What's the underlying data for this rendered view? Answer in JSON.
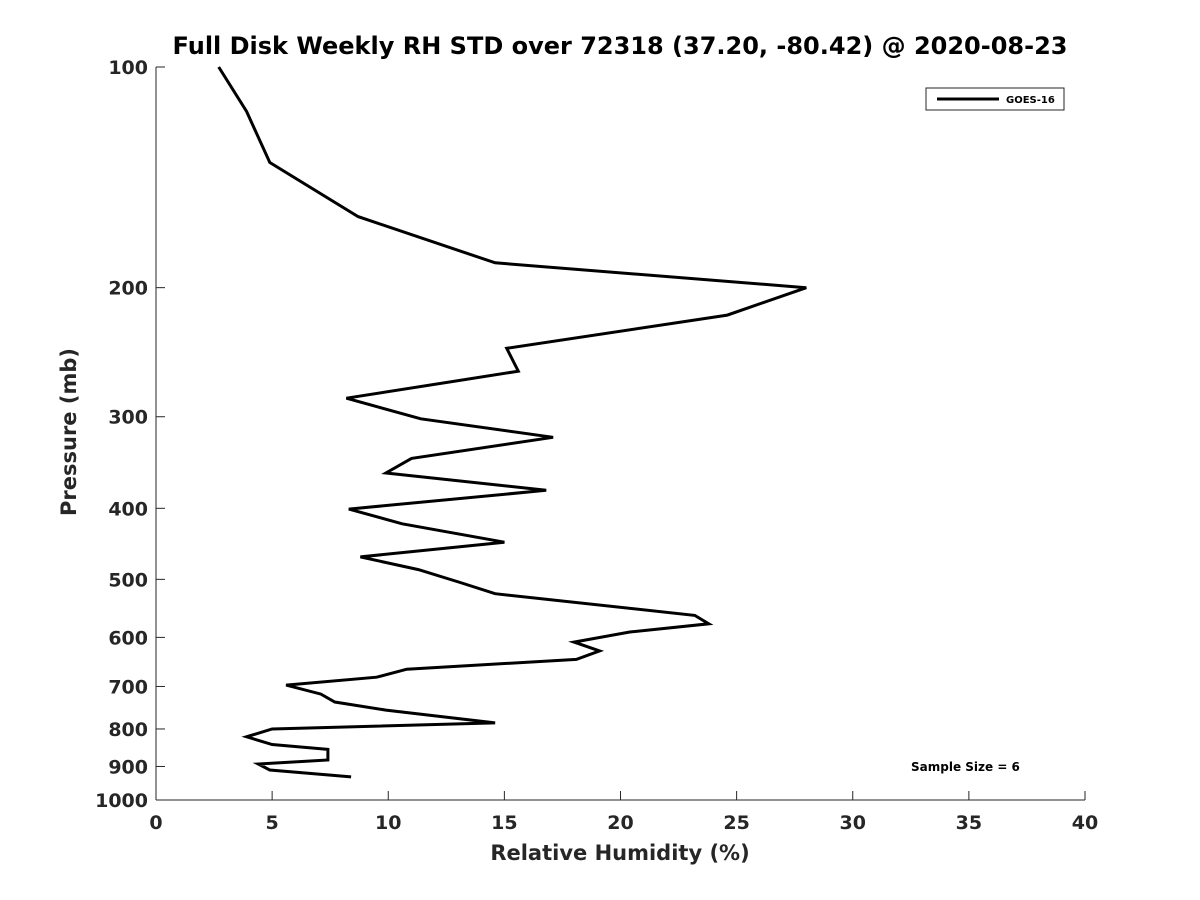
{
  "chart_data": {
    "type": "line",
    "title": "Full Disk Weekly RH STD over 72318 (37.20, -80.42) @ 2020-08-23",
    "xlabel": "Relative Humidity (%)",
    "ylabel": "Pressure (mb)",
    "xlim": [
      0,
      40
    ],
    "ylim": [
      100,
      1000
    ],
    "yscale": "log",
    "yreversed": true,
    "xticks": [
      0,
      5,
      10,
      15,
      20,
      25,
      30,
      35,
      40
    ],
    "yticks": [
      100,
      200,
      300,
      400,
      500,
      600,
      700,
      800,
      900,
      1000
    ],
    "grid": false,
    "legend_position": "top-right",
    "annotation": "Sample Size = 6",
    "series": [
      {
        "name": "GOES-16",
        "color": "#000000",
        "points": [
          [
            2.7,
            100
          ],
          [
            3.9,
            115
          ],
          [
            4.9,
            135
          ],
          [
            8.7,
            160
          ],
          [
            14.6,
            185
          ],
          [
            28.0,
            200
          ],
          [
            24.6,
            218
          ],
          [
            15.1,
            242
          ],
          [
            15.6,
            260
          ],
          [
            8.2,
            283
          ],
          [
            11.4,
            302
          ],
          [
            17.1,
            320
          ],
          [
            11.0,
            342
          ],
          [
            9.9,
            358
          ],
          [
            16.8,
            378
          ],
          [
            8.3,
            401
          ],
          [
            10.6,
            420
          ],
          [
            15.0,
            445
          ],
          [
            8.8,
            466
          ],
          [
            11.3,
            485
          ],
          [
            13.1,
            505
          ],
          [
            14.6,
            523
          ],
          [
            23.2,
            560
          ],
          [
            23.8,
            575
          ],
          [
            20.4,
            590
          ],
          [
            18.0,
            609
          ],
          [
            19.1,
            626
          ],
          [
            18.1,
            643
          ],
          [
            10.8,
            663
          ],
          [
            9.5,
            680
          ],
          [
            5.6,
            697
          ],
          [
            7.1,
            717
          ],
          [
            7.7,
            735
          ],
          [
            9.9,
            754
          ],
          [
            14.6,
            785
          ],
          [
            5.0,
            800
          ],
          [
            3.9,
            820
          ],
          [
            5.0,
            840
          ],
          [
            7.4,
            853
          ],
          [
            7.4,
            882
          ],
          [
            4.4,
            893
          ],
          [
            4.9,
            910
          ],
          [
            8.4,
            930
          ]
        ]
      }
    ]
  }
}
